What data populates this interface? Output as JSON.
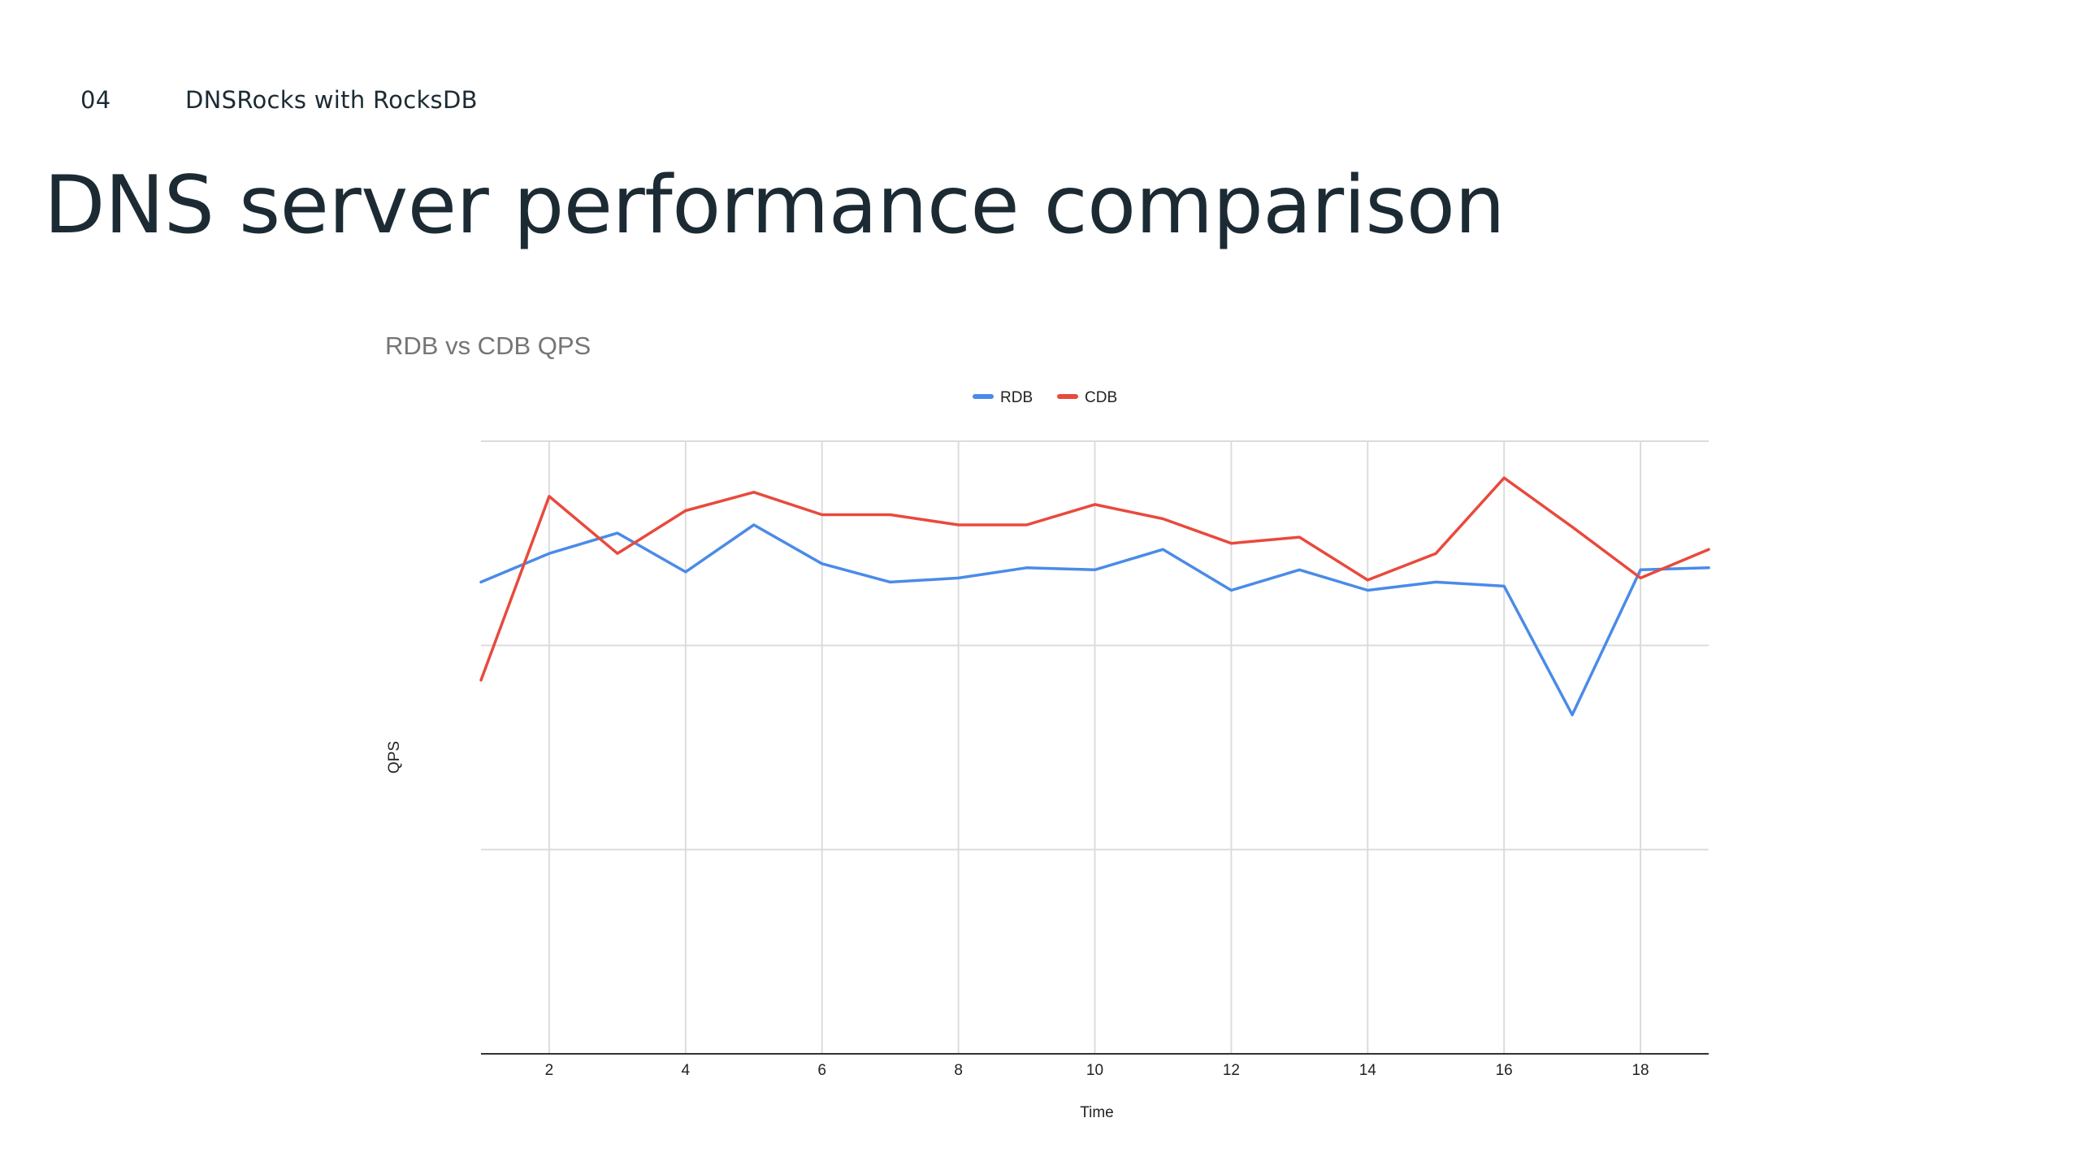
{
  "slide": {
    "section_number": "04",
    "section_title": "DNSRocks with RocksDB",
    "title": "DNS server performance comparison"
  },
  "chart_data": {
    "type": "line",
    "title": "RDB vs CDB QPS",
    "xlabel": "Time",
    "ylabel": "QPS",
    "x": [
      1,
      2,
      3,
      4,
      5,
      6,
      7,
      8,
      9,
      10,
      11,
      12,
      13,
      14,
      15,
      16,
      17,
      18,
      19
    ],
    "x_ticks": [
      "2",
      "4",
      "6",
      "8",
      "10",
      "12",
      "14",
      "16",
      "18"
    ],
    "xlim": [
      1,
      19
    ],
    "ylim": [
      0,
      3
    ],
    "y_tick_labels_shown": false,
    "grid": true,
    "legend_position": "top",
    "series": [
      {
        "name": "RDB",
        "color": "#4a8be8",
        "values": [
          2.31,
          2.45,
          2.55,
          2.36,
          2.59,
          2.4,
          2.31,
          2.33,
          2.38,
          2.37,
          2.47,
          2.27,
          2.37,
          2.27,
          2.31,
          2.29,
          1.66,
          2.37,
          2.38
        ]
      },
      {
        "name": "CDB",
        "color": "#e84a3c",
        "values": [
          1.83,
          2.73,
          2.45,
          2.66,
          2.75,
          2.64,
          2.64,
          2.59,
          2.59,
          2.69,
          2.62,
          2.5,
          2.53,
          2.32,
          2.45,
          2.82,
          2.58,
          2.33,
          2.47
        ]
      }
    ]
  }
}
